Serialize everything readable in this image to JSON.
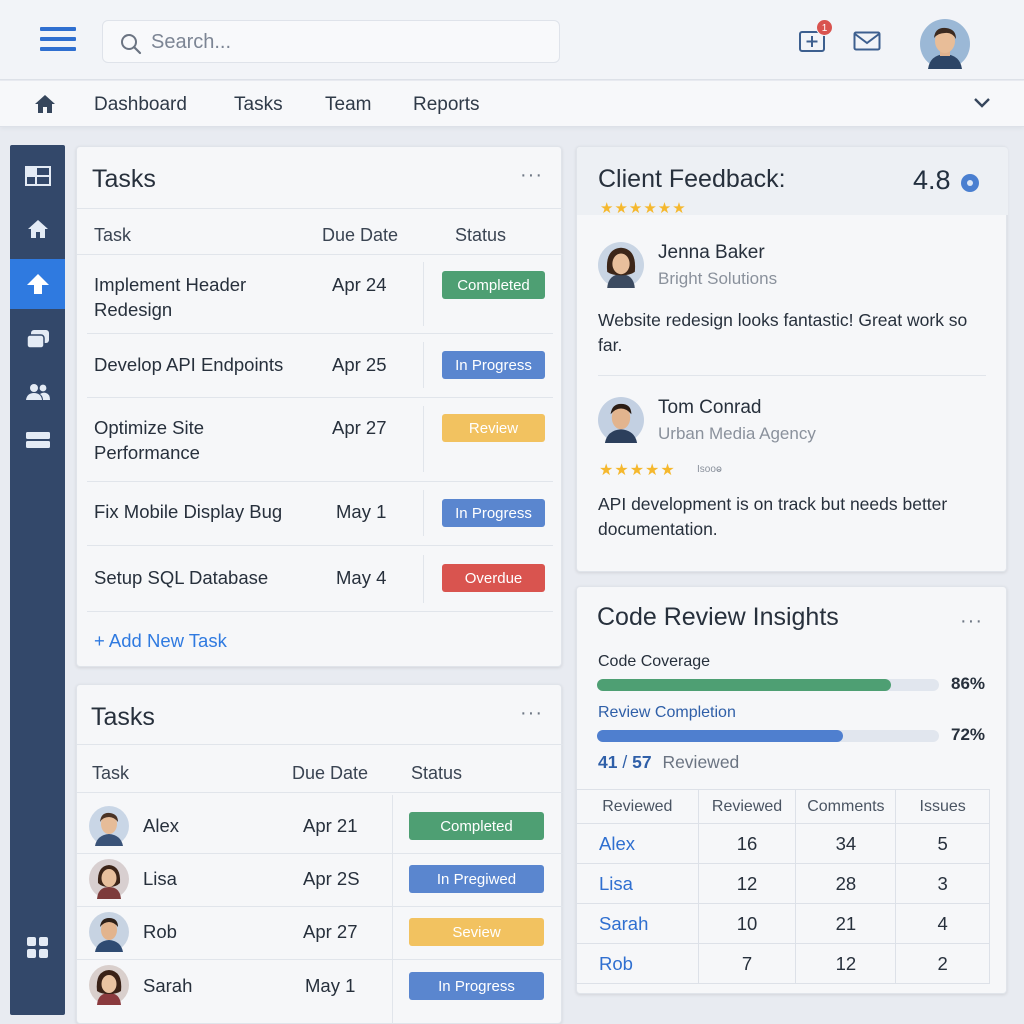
{
  "topbar": {
    "search_placeholder": "Search...",
    "notification_count": "1"
  },
  "nav": {
    "items": [
      "Dashboard",
      "Tasks",
      "Team",
      "Reports"
    ]
  },
  "tasks_card": {
    "title": "Tasks",
    "more": "···",
    "headers": {
      "task": "Task",
      "due": "Due Date",
      "status": "Status"
    },
    "rows": [
      {
        "task": "Implement Header Redesign",
        "due": "Apr 24",
        "status": "Completed",
        "color": "#4e9f73"
      },
      {
        "task": "Develop API Endpoints",
        "due": "Apr 25",
        "status": "In Progress",
        "color": "#5a86cf"
      },
      {
        "task": "Optimize Site Performance",
        "due": "Apr 27",
        "status": "Review",
        "color": "#f2c260"
      },
      {
        "task": "Fix Mobile Display Bug",
        "due": "May 1",
        "status": "In Progress",
        "color": "#5a86cf"
      },
      {
        "task": "Setup SQL Database",
        "due": "May 4",
        "status": "Overdue",
        "color": "#d9544f"
      }
    ],
    "add_label": "+ Add New Task"
  },
  "team_tasks_card": {
    "title": "Tasks",
    "more": "···",
    "headers": {
      "task": "Task",
      "due": "Due Date",
      "status": "Status"
    },
    "rows": [
      {
        "name": "Alex",
        "due": "Apr 21",
        "status": "Completed",
        "color": "#4e9f73"
      },
      {
        "name": "Lisa",
        "due": "Apr 2S",
        "status": "In Pregiwed",
        "color": "#5a86cf"
      },
      {
        "name": "Rob",
        "due": "Apr 27",
        "status": "Seview",
        "color": "#f2c260"
      },
      {
        "name": "Sarah",
        "due": "May 1",
        "status": "In Progress",
        "color": "#5a86cf"
      }
    ]
  },
  "feedback_card": {
    "title": "Client Feedback:",
    "rating": "4.8",
    "stars": "★★★★★★",
    "entries": [
      {
        "name": "Jenna Baker",
        "company": "Bright Solutions",
        "text": "Website redesign looks fantastic! Great work so far."
      },
      {
        "name": "Tom Conrad",
        "company": "Urban Media Agency",
        "stars": "★★★★★",
        "stars_note": "Isooⱺ",
        "text": "API development is on track but needs better documentation."
      }
    ]
  },
  "code_review_card": {
    "title": "Code Review Insights",
    "more": "···",
    "coverage": {
      "label": "Code Coverage",
      "value": 86,
      "text": "86%",
      "color": "#4e9f73"
    },
    "completion": {
      "label": "Review Completion",
      "value": 72,
      "text": "72%",
      "color": "#4f7fcf"
    },
    "reviewed_count": "41",
    "reviewed_sep": "/",
    "reviewed_total": "57",
    "reviewed_label": "Reviewed",
    "table_headers": [
      "Reviewed",
      "Reviewed",
      "Comments",
      "Issues"
    ],
    "table_rows": [
      [
        "Alex",
        "16",
        "34",
        "5"
      ],
      [
        "Lisa",
        "12",
        "28",
        "3"
      ],
      [
        "Sarah",
        "10",
        "21",
        "4"
      ],
      [
        "Rob",
        "7",
        "12",
        "2"
      ]
    ]
  }
}
